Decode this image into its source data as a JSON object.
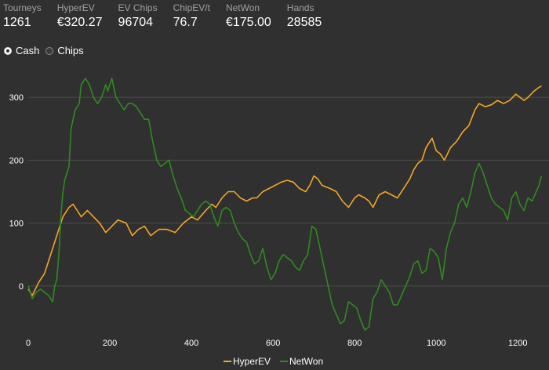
{
  "stats": [
    {
      "label": "Tourneys",
      "value": "1261"
    },
    {
      "label": "HyperEV",
      "value": "€320.27"
    },
    {
      "label": "EV Chips",
      "value": "96704"
    },
    {
      "label": "ChipEV/t",
      "value": "76.7"
    },
    {
      "label": "NetWon",
      "value": "€175.00"
    },
    {
      "label": "Hands",
      "value": "28585"
    }
  ],
  "view_toggle": {
    "options": [
      {
        "label": "Cash",
        "selected": true
      },
      {
        "label": "Chips",
        "selected": false
      }
    ]
  },
  "chart_data": {
    "type": "line",
    "xlim": [
      0,
      1261
    ],
    "ylim": [
      -75,
      345
    ],
    "x_ticks": [
      0,
      200,
      400,
      600,
      800,
      1000,
      1200
    ],
    "y_ticks": [
      0,
      100,
      200,
      300
    ],
    "grid": "horizontal",
    "legend_position": "bottom-center",
    "series": [
      {
        "name": "HyperEV",
        "color": "#f5a623",
        "points": [
          [
            0,
            -5
          ],
          [
            10,
            -15
          ],
          [
            25,
            5
          ],
          [
            40,
            20
          ],
          [
            55,
            50
          ],
          [
            70,
            80
          ],
          [
            85,
            110
          ],
          [
            100,
            125
          ],
          [
            110,
            130
          ],
          [
            120,
            120
          ],
          [
            130,
            110
          ],
          [
            145,
            120
          ],
          [
            160,
            110
          ],
          [
            175,
            100
          ],
          [
            190,
            85
          ],
          [
            205,
            95
          ],
          [
            220,
            105
          ],
          [
            240,
            100
          ],
          [
            255,
            80
          ],
          [
            270,
            90
          ],
          [
            285,
            95
          ],
          [
            300,
            80
          ],
          [
            320,
            90
          ],
          [
            340,
            90
          ],
          [
            360,
            85
          ],
          [
            380,
            100
          ],
          [
            400,
            110
          ],
          [
            415,
            105
          ],
          [
            435,
            120
          ],
          [
            450,
            130
          ],
          [
            460,
            125
          ],
          [
            475,
            140
          ],
          [
            490,
            150
          ],
          [
            505,
            150
          ],
          [
            520,
            140
          ],
          [
            535,
            135
          ],
          [
            550,
            140
          ],
          [
            560,
            140
          ],
          [
            575,
            150
          ],
          [
            590,
            155
          ],
          [
            605,
            160
          ],
          [
            620,
            165
          ],
          [
            635,
            168
          ],
          [
            650,
            165
          ],
          [
            665,
            155
          ],
          [
            680,
            150
          ],
          [
            690,
            160
          ],
          [
            700,
            175
          ],
          [
            710,
            170
          ],
          [
            720,
            160
          ],
          [
            740,
            155
          ],
          [
            755,
            150
          ],
          [
            770,
            135
          ],
          [
            785,
            125
          ],
          [
            800,
            140
          ],
          [
            810,
            145
          ],
          [
            825,
            140
          ],
          [
            835,
            135
          ],
          [
            845,
            125
          ],
          [
            860,
            145
          ],
          [
            875,
            150
          ],
          [
            890,
            145
          ],
          [
            905,
            140
          ],
          [
            920,
            155
          ],
          [
            935,
            170
          ],
          [
            945,
            185
          ],
          [
            955,
            195
          ],
          [
            965,
            200
          ],
          [
            975,
            220
          ],
          [
            990,
            235
          ],
          [
            1000,
            215
          ],
          [
            1010,
            210
          ],
          [
            1020,
            200
          ],
          [
            1035,
            220
          ],
          [
            1050,
            230
          ],
          [
            1065,
            245
          ],
          [
            1080,
            255
          ],
          [
            1095,
            280
          ],
          [
            1105,
            290
          ],
          [
            1120,
            285
          ],
          [
            1135,
            288
          ],
          [
            1150,
            295
          ],
          [
            1165,
            290
          ],
          [
            1180,
            295
          ],
          [
            1195,
            305
          ],
          [
            1205,
            300
          ],
          [
            1215,
            295
          ],
          [
            1225,
            300
          ],
          [
            1240,
            310
          ],
          [
            1250,
            315
          ],
          [
            1258,
            318
          ]
        ]
      },
      {
        "name": "NetWon",
        "color": "#2e8b1e",
        "points": [
          [
            0,
            0
          ],
          [
            10,
            -20
          ],
          [
            20,
            -10
          ],
          [
            30,
            -5
          ],
          [
            40,
            -10
          ],
          [
            50,
            -15
          ],
          [
            60,
            -25
          ],
          [
            65,
            0
          ],
          [
            70,
            10
          ],
          [
            75,
            50
          ],
          [
            80,
            110
          ],
          [
            85,
            150
          ],
          [
            90,
            170
          ],
          [
            100,
            190
          ],
          [
            105,
            250
          ],
          [
            115,
            280
          ],
          [
            125,
            290
          ],
          [
            130,
            320
          ],
          [
            140,
            330
          ],
          [
            150,
            320
          ],
          [
            160,
            300
          ],
          [
            170,
            290
          ],
          [
            180,
            300
          ],
          [
            190,
            320
          ],
          [
            195,
            310
          ],
          [
            205,
            330
          ],
          [
            215,
            300
          ],
          [
            225,
            290
          ],
          [
            235,
            280
          ],
          [
            245,
            290
          ],
          [
            255,
            290
          ],
          [
            265,
            285
          ],
          [
            275,
            275
          ],
          [
            285,
            265
          ],
          [
            295,
            265
          ],
          [
            305,
            230
          ],
          [
            315,
            200
          ],
          [
            325,
            190
          ],
          [
            335,
            195
          ],
          [
            345,
            200
          ],
          [
            355,
            175
          ],
          [
            365,
            155
          ],
          [
            375,
            140
          ],
          [
            385,
            120
          ],
          [
            395,
            115
          ],
          [
            405,
            110
          ],
          [
            415,
            120
          ],
          [
            425,
            130
          ],
          [
            435,
            135
          ],
          [
            445,
            130
          ],
          [
            455,
            110
          ],
          [
            465,
            95
          ],
          [
            475,
            120
          ],
          [
            485,
            125
          ],
          [
            495,
            120
          ],
          [
            505,
            100
          ],
          [
            515,
            85
          ],
          [
            525,
            75
          ],
          [
            535,
            70
          ],
          [
            545,
            50
          ],
          [
            555,
            35
          ],
          [
            565,
            40
          ],
          [
            575,
            60
          ],
          [
            585,
            30
          ],
          [
            595,
            10
          ],
          [
            605,
            20
          ],
          [
            615,
            40
          ],
          [
            625,
            50
          ],
          [
            635,
            45
          ],
          [
            645,
            40
          ],
          [
            655,
            30
          ],
          [
            665,
            25
          ],
          [
            675,
            40
          ],
          [
            685,
            50
          ],
          [
            695,
            95
          ],
          [
            705,
            90
          ],
          [
            715,
            60
          ],
          [
            725,
            30
          ],
          [
            735,
            0
          ],
          [
            745,
            -30
          ],
          [
            755,
            -45
          ],
          [
            765,
            -60
          ],
          [
            775,
            -55
          ],
          [
            785,
            -25
          ],
          [
            795,
            -30
          ],
          [
            805,
            -35
          ],
          [
            815,
            -55
          ],
          [
            825,
            -70
          ],
          [
            835,
            -65
          ],
          [
            845,
            -20
          ],
          [
            855,
            -10
          ],
          [
            865,
            10
          ],
          [
            875,
            0
          ],
          [
            885,
            -10
          ],
          [
            895,
            -30
          ],
          [
            905,
            -30
          ],
          [
            915,
            -15
          ],
          [
            925,
            0
          ],
          [
            935,
            15
          ],
          [
            945,
            35
          ],
          [
            955,
            40
          ],
          [
            965,
            20
          ],
          [
            975,
            25
          ],
          [
            985,
            60
          ],
          [
            995,
            55
          ],
          [
            1005,
            45
          ],
          [
            1015,
            10
          ],
          [
            1025,
            60
          ],
          [
            1035,
            85
          ],
          [
            1045,
            100
          ],
          [
            1055,
            130
          ],
          [
            1065,
            140
          ],
          [
            1075,
            125
          ],
          [
            1085,
            150
          ],
          [
            1095,
            180
          ],
          [
            1105,
            195
          ],
          [
            1115,
            180
          ],
          [
            1125,
            160
          ],
          [
            1135,
            140
          ],
          [
            1145,
            130
          ],
          [
            1155,
            125
          ],
          [
            1165,
            120
          ],
          [
            1175,
            105
          ],
          [
            1185,
            140
          ],
          [
            1195,
            150
          ],
          [
            1205,
            130
          ],
          [
            1215,
            120
          ],
          [
            1225,
            140
          ],
          [
            1235,
            135
          ],
          [
            1245,
            150
          ],
          [
            1252,
            160
          ],
          [
            1258,
            175
          ]
        ]
      }
    ]
  }
}
